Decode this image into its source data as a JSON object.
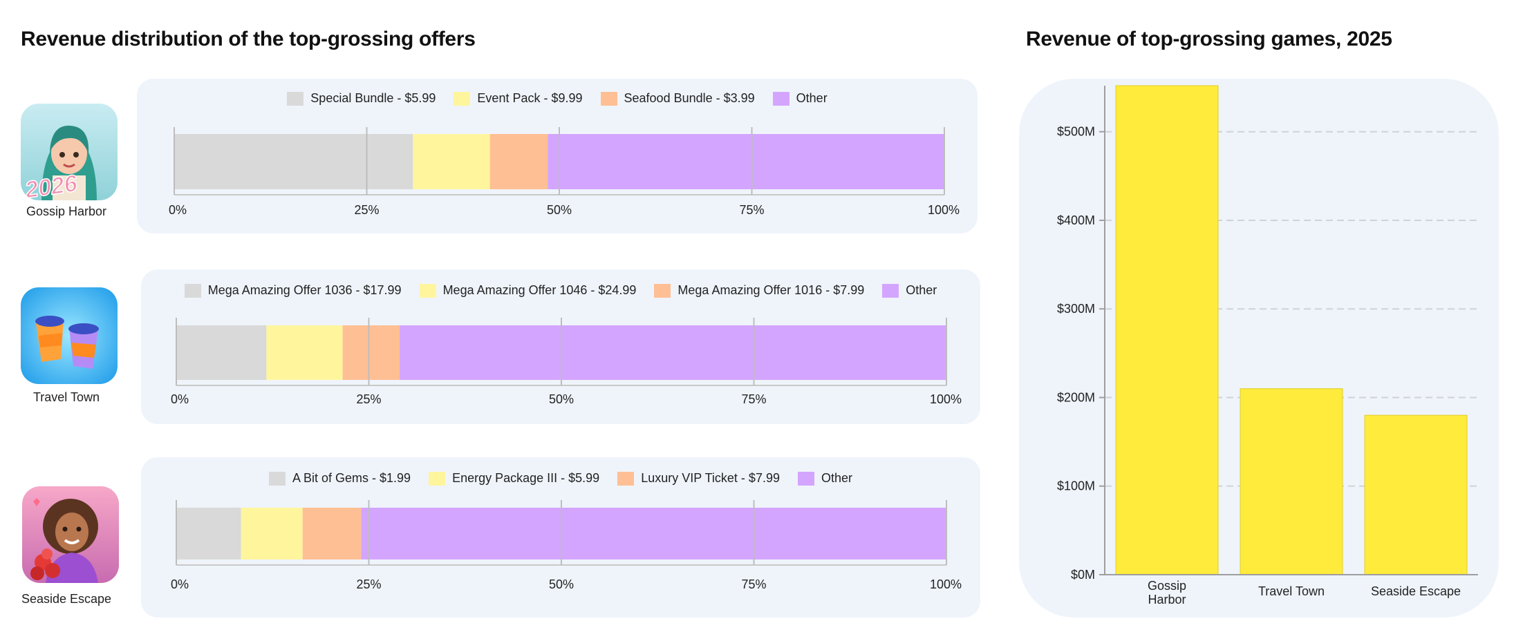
{
  "left_title": "Revenue distribution of the top-grossing offers",
  "right_title": "Revenue of top-grossing games, 2025",
  "colors": {
    "offer1": "#d9d9d9",
    "offer2": "#fff59d",
    "offer3": "#ffbf94",
    "other": "#d4a5ff",
    "revenue_bar": "#ffeb3b",
    "panel": "#eff4fb"
  },
  "games": [
    {
      "name": "Gossip Harbor",
      "icon_badge": "2026",
      "legend": [
        "Special Bundle - $5.99",
        "Event Pack - $9.99",
        "Seafood Bundle - $3.99",
        "Other"
      ]
    },
    {
      "name": "Travel Town",
      "legend": [
        "Mega Amazing Offer 1036 - $17.99",
        "Mega Amazing Offer 1046 - $24.99",
        "Mega Amazing Offer 1016 - $7.99",
        "Other"
      ]
    },
    {
      "name": "Seaside Escape",
      "legend": [
        "A Bit of Gems - $1.99",
        "Energy Package III - $5.99",
        "Luxury VIP Ticket - $7.99",
        "Other"
      ]
    }
  ],
  "chart_data": [
    {
      "type": "bar",
      "orientation": "horizontal-stacked-100",
      "title": "Gossip Harbor",
      "series": [
        {
          "name": "Special Bundle - $5.99",
          "values": [
            31
          ]
        },
        {
          "name": "Event Pack - $9.99",
          "values": [
            10
          ]
        },
        {
          "name": "Seafood Bundle - $3.99",
          "values": [
            7.5
          ]
        },
        {
          "name": "Other",
          "values": [
            51.5
          ]
        }
      ],
      "xticks": [
        "0%",
        "25%",
        "50%",
        "75%",
        "100%"
      ],
      "xlim": [
        0,
        100
      ]
    },
    {
      "type": "bar",
      "orientation": "horizontal-stacked-100",
      "title": "Travel Town",
      "series": [
        {
          "name": "Mega Amazing Offer 1036 - $17.99",
          "values": [
            11.7
          ]
        },
        {
          "name": "Mega Amazing Offer 1046 - $24.99",
          "values": [
            9.9
          ]
        },
        {
          "name": "Mega Amazing Offer 1016 - $7.99",
          "values": [
            7.4
          ]
        },
        {
          "name": "Other",
          "values": [
            71
          ]
        }
      ],
      "xticks": [
        "0%",
        "25%",
        "50%",
        "75%",
        "100%"
      ],
      "xlim": [
        0,
        100
      ]
    },
    {
      "type": "bar",
      "orientation": "horizontal-stacked-100",
      "title": "Seaside Escape",
      "series": [
        {
          "name": "A Bit of Gems - $1.99",
          "values": [
            8.4
          ]
        },
        {
          "name": "Energy Package III - $5.99",
          "values": [
            8
          ]
        },
        {
          "name": "Luxury VIP Ticket - $7.99",
          "values": [
            7.6
          ]
        },
        {
          "name": "Other",
          "values": [
            76
          ]
        }
      ],
      "xticks": [
        "0%",
        "25%",
        "50%",
        "75%",
        "100%"
      ],
      "xlim": [
        0,
        100
      ]
    },
    {
      "type": "bar",
      "title": "Revenue of top-grossing games, 2025",
      "categories": [
        "Gossip Harbor",
        "Travel Town",
        "Seaside Escape"
      ],
      "values": [
        552,
        210,
        180
      ],
      "unit": "$M",
      "yticks": [
        "$0M",
        "$100M",
        "$200M",
        "$300M",
        "$400M",
        "$500M"
      ],
      "ylim": [
        0,
        552
      ],
      "grid": "horizontal dashed"
    }
  ]
}
